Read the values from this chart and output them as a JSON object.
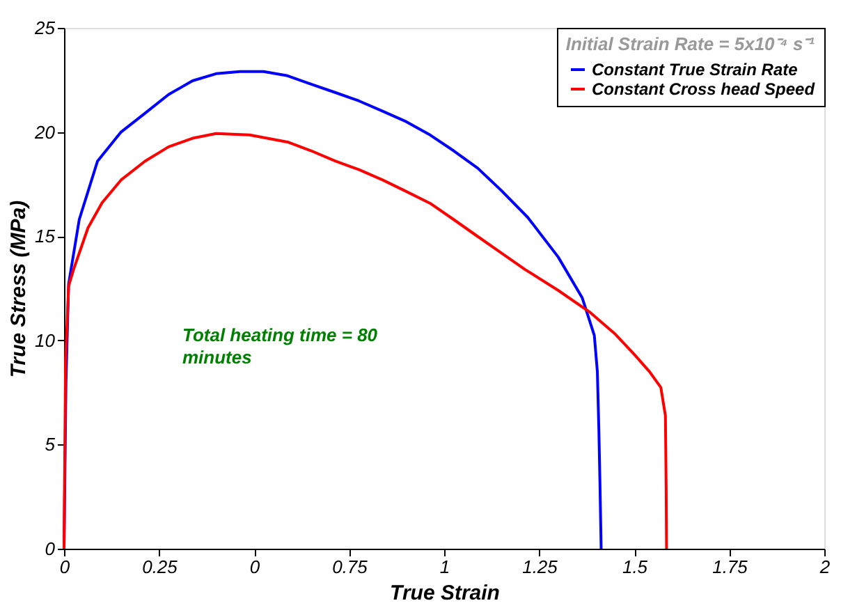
{
  "chart_data": {
    "type": "line",
    "xlabel": "True Strain",
    "ylabel": "True Stress (MPa)",
    "legend_title": "Initial Strain Rate = 5x10⁻⁴ s⁻¹",
    "annotations": [
      "Total heating time = 80\nminutes"
    ],
    "xlim": [
      0,
      2
    ],
    "ylim": [
      0,
      25
    ],
    "xticks": [
      0,
      0.25,
      {
        "value": 0.5,
        "label": "0"
      },
      0.75,
      1,
      1.25,
      1.5,
      1.75,
      2
    ],
    "yticks": [
      0,
      5,
      10,
      15,
      20,
      25
    ],
    "grid": false,
    "legend": "top right",
    "marker": "none",
    "line_style": "solid",
    "series": [
      {
        "name": "Constant True Strain Rate",
        "color": "#0000ff",
        "x": [
          0,
          0.005,
          0.012,
          0.04,
          0.088,
          0.15,
          0.213,
          0.275,
          0.338,
          0.4,
          0.463,
          0.525,
          0.588,
          0.65,
          0.713,
          0.775,
          0.838,
          0.9,
          0.963,
          1.025,
          1.088,
          1.15,
          1.22,
          1.3,
          1.363,
          1.395,
          1.403,
          1.407,
          1.41,
          1.413
        ],
        "values": [
          0,
          8,
          12.7,
          15.8,
          18.6,
          20.0,
          20.9,
          21.8,
          22.46,
          22.8,
          22.9,
          22.9,
          22.7,
          22.3,
          21.9,
          21.5,
          21.0,
          20.5,
          19.86,
          19.1,
          18.27,
          17.2,
          15.9,
          14.0,
          12.05,
          10.24,
          8.5,
          5.7,
          3,
          0
        ]
      },
      {
        "name": "Constant Cross head Speed",
        "color": "#ff0000",
        "x": [
          0,
          0.004,
          0.012,
          0.025,
          0.063,
          0.1,
          0.15,
          0.213,
          0.275,
          0.338,
          0.4,
          0.488,
          0.588,
          0.65,
          0.713,
          0.775,
          0.838,
          0.9,
          0.963,
          1.025,
          1.088,
          1.15,
          1.213,
          1.3,
          1.382,
          1.45,
          1.5,
          1.54,
          1.57,
          1.582,
          1.584,
          1.585
        ],
        "values": [
          0,
          9,
          12.6,
          13.4,
          15.4,
          16.6,
          17.7,
          18.6,
          19.29,
          19.7,
          19.93,
          19.86,
          19.52,
          19.1,
          18.61,
          18.2,
          17.7,
          17.15,
          16.58,
          15.8,
          14.99,
          14.2,
          13.4,
          12.4,
          11.37,
          10.3,
          9.33,
          8.5,
          7.74,
          6.39,
          3,
          0
        ]
      }
    ]
  }
}
